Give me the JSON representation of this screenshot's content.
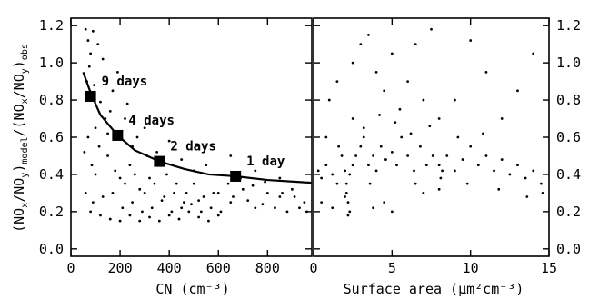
{
  "chart_data": [
    {
      "type": "scatter",
      "xlabel": "CN (cm⁻³)",
      "ylabel_parts": [
        "(NO",
        "x",
        "/NO",
        "y",
        ")",
        "model",
        "/(NO",
        "x",
        "/NO",
        "y",
        ")",
        "obs"
      ],
      "xlim": [
        0,
        980
      ],
      "ylim": [
        -0.04,
        1.24
      ],
      "xticks": [
        0,
        200,
        400,
        600,
        800
      ],
      "xtick_labels": [
        "0",
        "200",
        "400",
        "600",
        "800"
      ],
      "yticks": [
        0.0,
        0.2,
        0.4,
        0.6,
        0.8,
        1.0,
        1.2
      ],
      "ytick_labels": [
        "0.0",
        "0.2",
        "0.4",
        "0.6",
        "0.8",
        "1.0",
        "1.2"
      ],
      "grid": false,
      "fit_curve": {
        "x": [
          50,
          80,
          120,
          190,
          260,
          360,
          460,
          560,
          670,
          800,
          980
        ],
        "y": [
          0.95,
          0.84,
          0.72,
          0.61,
          0.53,
          0.47,
          0.43,
          0.4,
          0.39,
          0.37,
          0.355
        ]
      },
      "markers": [
        {
          "x": 80,
          "y": 0.82,
          "label": "9 days"
        },
        {
          "x": 190,
          "y": 0.61,
          "label": "4 days"
        },
        {
          "x": 360,
          "y": 0.47,
          "label": "2 days"
        },
        {
          "x": 670,
          "y": 0.39,
          "label": "1 day"
        }
      ],
      "scatter_cloud": {
        "description_points": [
          [
            60,
            1.18
          ],
          [
            70,
            1.12
          ],
          [
            80,
            1.05
          ],
          [
            90,
            1.17
          ],
          [
            75,
            0.98
          ],
          [
            110,
            1.1
          ],
          [
            130,
            1.02
          ],
          [
            65,
            0.9
          ],
          [
            95,
            0.88
          ],
          [
            120,
            0.79
          ],
          [
            140,
            0.7
          ],
          [
            160,
            0.74
          ],
          [
            100,
            0.65
          ],
          [
            70,
            0.6
          ],
          [
            55,
            0.52
          ],
          [
            85,
            0.45
          ],
          [
            115,
            0.55
          ],
          [
            150,
            0.5
          ],
          [
            180,
            0.42
          ],
          [
            200,
            0.38
          ],
          [
            220,
            0.35
          ],
          [
            240,
            0.45
          ],
          [
            260,
            0.4
          ],
          [
            280,
            0.32
          ],
          [
            300,
            0.3
          ],
          [
            320,
            0.38
          ],
          [
            340,
            0.35
          ],
          [
            380,
            0.28
          ],
          [
            420,
            0.3
          ],
          [
            460,
            0.25
          ],
          [
            500,
            0.35
          ],
          [
            540,
            0.28
          ],
          [
            600,
            0.3
          ],
          [
            650,
            0.25
          ],
          [
            700,
            0.32
          ],
          [
            750,
            0.22
          ],
          [
            800,
            0.3
          ],
          [
            850,
            0.28
          ],
          [
            900,
            0.32
          ],
          [
            950,
            0.25
          ],
          [
            60,
            0.3
          ],
          [
            90,
            0.25
          ],
          [
            130,
            0.28
          ],
          [
            170,
            0.3
          ],
          [
            210,
            0.22
          ],
          [
            250,
            0.25
          ],
          [
            290,
            0.2
          ],
          [
            330,
            0.22
          ],
          [
            370,
            0.26
          ],
          [
            410,
            0.2
          ],
          [
            450,
            0.22
          ],
          [
            490,
            0.24
          ],
          [
            530,
            0.2
          ],
          [
            570,
            0.22
          ],
          [
            610,
            0.2
          ],
          [
            660,
            0.28
          ],
          [
            720,
            0.26
          ],
          [
            780,
            0.24
          ],
          [
            830,
            0.22
          ],
          [
            880,
            0.2
          ],
          [
            930,
            0.22
          ],
          [
            100,
            0.4
          ],
          [
            150,
            0.62
          ],
          [
            250,
            0.55
          ],
          [
            350,
            0.52
          ],
          [
            450,
            0.48
          ],
          [
            550,
            0.45
          ],
          [
            650,
            0.5
          ],
          [
            750,
            0.42
          ],
          [
            850,
            0.38
          ],
          [
            300,
            0.65
          ],
          [
            400,
            0.58
          ],
          [
            500,
            0.42
          ],
          [
            220,
            0.7
          ],
          [
            170,
            0.85
          ],
          [
            190,
            0.95
          ],
          [
            230,
            0.78
          ],
          [
            270,
            0.6
          ],
          [
            310,
            0.5
          ],
          [
            390,
            0.4
          ],
          [
            430,
            0.35
          ],
          [
            470,
            0.3
          ],
          [
            520,
            0.26
          ],
          [
            580,
            0.3
          ],
          [
            640,
            0.35
          ],
          [
            690,
            0.38
          ],
          [
            740,
            0.34
          ],
          [
            790,
            0.36
          ],
          [
            860,
            0.3
          ],
          [
            910,
            0.28
          ],
          [
            960,
            0.2
          ],
          [
            80,
            0.2
          ],
          [
            120,
            0.18
          ],
          [
            160,
            0.16
          ],
          [
            200,
            0.15
          ],
          [
            240,
            0.18
          ],
          [
            280,
            0.15
          ],
          [
            320,
            0.17
          ],
          [
            360,
            0.15
          ],
          [
            400,
            0.18
          ],
          [
            440,
            0.16
          ],
          [
            480,
            0.2
          ],
          [
            520,
            0.17
          ],
          [
            560,
            0.15
          ],
          [
            600,
            0.18
          ]
        ]
      }
    },
    {
      "type": "scatter",
      "xlabel": "Surface area (μm²cm⁻³)",
      "xlim": [
        0,
        15
      ],
      "ylim": [
        -0.04,
        1.24
      ],
      "xticks": [
        0,
        5,
        10,
        15
      ],
      "xtick_labels": [
        "0",
        "5",
        "10",
        "15"
      ],
      "yticks": [
        0.0,
        0.2,
        0.4,
        0.6,
        0.8,
        1.0,
        1.2
      ],
      "ytick_labels": [
        "0.0",
        "0.2",
        "0.4",
        "0.6",
        "0.8",
        "1.0",
        "1.2"
      ],
      "grid": false,
      "scatter_cloud": {
        "description_points": [
          [
            0.3,
            0.42
          ],
          [
            0.5,
            0.38
          ],
          [
            0.8,
            0.45
          ],
          [
            1.2,
            0.4
          ],
          [
            1.5,
            0.35
          ],
          [
            1.8,
            0.5
          ],
          [
            2.0,
            0.42
          ],
          [
            2.1,
            0.3
          ],
          [
            2.2,
            0.25
          ],
          [
            2.3,
            0.2
          ],
          [
            2.2,
            0.18
          ],
          [
            2.1,
            0.35
          ],
          [
            2.0,
            0.28
          ],
          [
            2.3,
            0.4
          ],
          [
            2.5,
            0.45
          ],
          [
            2.7,
            0.5
          ],
          [
            3.0,
            0.55
          ],
          [
            3.2,
            0.6
          ],
          [
            3.5,
            0.45
          ],
          [
            3.8,
            0.5
          ],
          [
            4.0,
            0.42
          ],
          [
            4.3,
            0.55
          ],
          [
            4.6,
            0.48
          ],
          [
            5.0,
            0.52
          ],
          [
            5.3,
            0.45
          ],
          [
            5.6,
            0.6
          ],
          [
            6.0,
            0.5
          ],
          [
            6.4,
            0.42
          ],
          [
            6.8,
            0.55
          ],
          [
            7.2,
            0.45
          ],
          [
            7.6,
            0.5
          ],
          [
            8.0,
            0.45
          ],
          [
            8.1,
            0.38
          ],
          [
            8.0,
            0.32
          ],
          [
            8.2,
            0.42
          ],
          [
            8.5,
            0.5
          ],
          [
            9.0,
            0.42
          ],
          [
            9.5,
            0.48
          ],
          [
            10.0,
            0.55
          ],
          [
            10.5,
            0.45
          ],
          [
            11.0,
            0.5
          ],
          [
            11.5,
            0.42
          ],
          [
            12.0,
            0.48
          ],
          [
            12.5,
            0.4
          ],
          [
            13.0,
            0.45
          ],
          [
            13.5,
            0.38
          ],
          [
            14.0,
            0.42
          ],
          [
            14.5,
            0.35
          ],
          [
            1.0,
            0.8
          ],
          [
            1.5,
            0.9
          ],
          [
            2.5,
            1.0
          ],
          [
            3.0,
            1.1
          ],
          [
            3.5,
            1.15
          ],
          [
            4.0,
            0.95
          ],
          [
            4.5,
            0.85
          ],
          [
            5.0,
            1.05
          ],
          [
            5.5,
            0.75
          ],
          [
            6.0,
            0.9
          ],
          [
            6.5,
            1.1
          ],
          [
            7.0,
            0.8
          ],
          [
            7.5,
            1.18
          ],
          [
            8.0,
            0.7
          ],
          [
            9.0,
            0.8
          ],
          [
            10.0,
            1.12
          ],
          [
            11.0,
            0.95
          ],
          [
            12.0,
            0.7
          ],
          [
            13.0,
            0.85
          ],
          [
            14.0,
            1.05
          ],
          [
            2.5,
            0.7
          ],
          [
            3.2,
            0.65
          ],
          [
            4.2,
            0.72
          ],
          [
            5.2,
            0.68
          ],
          [
            6.2,
            0.62
          ],
          [
            7.4,
            0.66
          ],
          [
            9.2,
            0.6
          ],
          [
            0.5,
            0.25
          ],
          [
            3.8,
            0.22
          ],
          [
            4.5,
            0.25
          ],
          [
            5.0,
            0.2
          ],
          [
            1.2,
            0.22
          ],
          [
            7.0,
            0.3
          ],
          [
            9.8,
            0.35
          ],
          [
            11.8,
            0.32
          ],
          [
            13.6,
            0.28
          ],
          [
            14.6,
            0.3
          ],
          [
            6.5,
            0.35
          ],
          [
            3.6,
            0.35
          ],
          [
            1.6,
            0.55
          ],
          [
            0.8,
            0.6
          ],
          [
            10.8,
            0.62
          ]
        ]
      }
    }
  ],
  "right_axis": {
    "ticks": [
      0.0,
      0.2,
      0.4,
      0.6,
      0.8,
      1.0,
      1.2
    ],
    "labels": [
      "0.0",
      "0.2",
      "0.4",
      "0.6",
      "0.8",
      "1.0",
      "1.2"
    ]
  }
}
